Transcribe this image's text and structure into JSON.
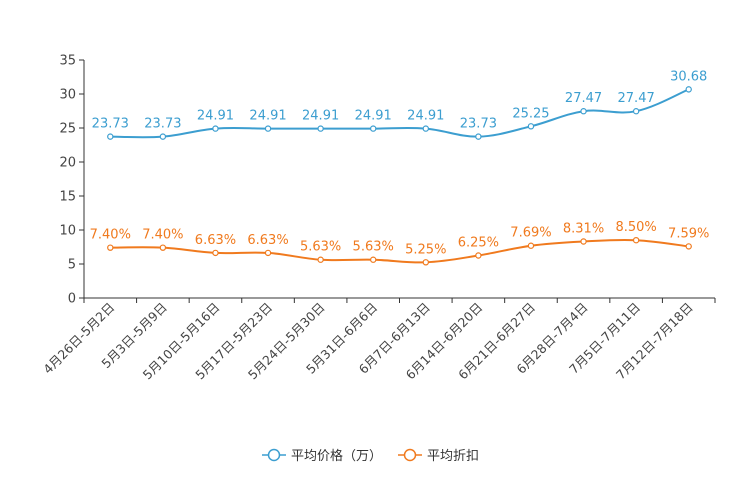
{
  "chart_data": {
    "type": "line",
    "title": "",
    "xlabel": "",
    "ylabel": "",
    "ylim": [
      0,
      35
    ],
    "yticks": [
      0,
      5,
      10,
      15,
      20,
      25,
      30,
      35
    ],
    "grid": false,
    "legend_position": "bottom-center",
    "categories": [
      "4月26日-5月2日",
      "5月3日-5月9日",
      "5月10日-5月16日",
      "5月17日-5月23日",
      "5月24日-5月30日",
      "5月31日-6月6日",
      "6月7日-6月13日",
      "6月14日-6月20日",
      "6月21日-6月27日",
      "6月28日-7月4日",
      "7月5日-7月11日",
      "7月12日-7月18日"
    ],
    "series": [
      {
        "name": "平均价格（万）",
        "color": "#3c9ed0",
        "values": [
          23.73,
          23.73,
          24.91,
          24.91,
          24.91,
          24.91,
          24.91,
          23.73,
          25.25,
          27.47,
          27.47,
          30.68
        ],
        "labels": [
          "23.73",
          "23.73",
          "24.91",
          "24.91",
          "24.91",
          "24.91",
          "24.91",
          "23.73",
          "25.25",
          "27.47",
          "27.47",
          "30.68"
        ]
      },
      {
        "name": "平均折扣",
        "color": "#f07a1e",
        "values": [
          7.4,
          7.4,
          6.63,
          6.63,
          5.63,
          5.63,
          5.25,
          6.25,
          7.69,
          8.31,
          8.5,
          7.59
        ],
        "labels": [
          "7.40%",
          "7.40%",
          "6.63%",
          "6.63%",
          "5.63%",
          "5.63%",
          "5.25%",
          "6.25%",
          "7.69%",
          "8.31%",
          "8.50%",
          "7.59%"
        ]
      }
    ]
  }
}
